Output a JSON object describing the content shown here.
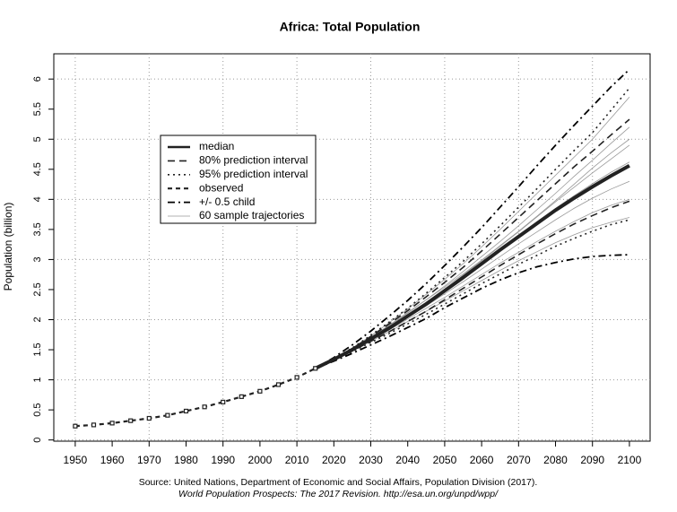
{
  "chart_data": {
    "type": "line",
    "title": "Africa: Total Population",
    "ylabel": "Population (billion)",
    "source": "Source: United Nations, Department of Economic and Social Affairs, Population Division (2017).",
    "source2": "World Population Prospects: The 2017 Revision. http://esa.un.org/unpd/wpp/",
    "xlim": [
      1944.2,
      2105.6
    ],
    "ylim": [
      -0.02,
      6.42
    ],
    "xticks": [
      1950,
      1960,
      1970,
      1980,
      1990,
      2000,
      2010,
      2020,
      2030,
      2040,
      2050,
      2060,
      2070,
      2080,
      2090,
      2100
    ],
    "yticks": [
      0,
      0.5,
      1,
      1.5,
      2,
      2.5,
      3,
      3.5,
      4,
      4.5,
      5,
      5.5,
      6
    ],
    "xgrid": [
      1950,
      1970,
      1990,
      2010,
      2030,
      2050,
      2070,
      2090
    ],
    "ygrid": [
      0,
      1,
      2,
      3,
      4,
      5,
      6
    ],
    "grid": true,
    "x": [
      2015,
      2020,
      2025,
      2030,
      2035,
      2040,
      2045,
      2050,
      2055,
      2060,
      2065,
      2070,
      2075,
      2080,
      2085,
      2090,
      2095,
      2100
    ],
    "series": [
      {
        "name": "median",
        "color": "#222222",
        "dash": "",
        "width": 4,
        "lines": [
          [
            1.19,
            1.34,
            1.5,
            1.68,
            1.86,
            2.06,
            2.26,
            2.48,
            2.7,
            2.93,
            3.16,
            3.38,
            3.6,
            3.82,
            4.02,
            4.21,
            4.39,
            4.56
          ]
        ]
      },
      {
        "name": "80% prediction interval",
        "color": "#222222",
        "dash": "8 5",
        "width": 1.6,
        "lines": [
          [
            1.19,
            1.34,
            1.52,
            1.72,
            1.93,
            2.15,
            2.38,
            2.62,
            2.87,
            3.14,
            3.42,
            3.7,
            3.98,
            4.26,
            4.54,
            4.8,
            5.07,
            5.33
          ],
          [
            1.19,
            1.33,
            1.48,
            1.64,
            1.8,
            1.97,
            2.14,
            2.33,
            2.52,
            2.71,
            2.9,
            3.08,
            3.26,
            3.43,
            3.59,
            3.73,
            3.86,
            3.97
          ]
        ]
      },
      {
        "name": "95% prediction interval",
        "color": "#222222",
        "dash": "2 4",
        "width": 1.6,
        "lines": [
          [
            1.19,
            1.35,
            1.53,
            1.74,
            1.96,
            2.19,
            2.44,
            2.7,
            2.97,
            3.26,
            3.56,
            3.87,
            4.18,
            4.5,
            4.81,
            5.11,
            5.48,
            5.85
          ],
          [
            1.19,
            1.33,
            1.47,
            1.62,
            1.77,
            1.93,
            2.09,
            2.26,
            2.43,
            2.6,
            2.76,
            2.92,
            3.07,
            3.22,
            3.35,
            3.47,
            3.58,
            3.66
          ]
        ]
      },
      {
        "name": "observed",
        "color": "#222222",
        "dash": "5 4",
        "width": 2.2,
        "marker": true,
        "x": [
          1950,
          1955,
          1960,
          1965,
          1970,
          1975,
          1980,
          1985,
          1990,
          1995,
          2000,
          2005,
          2010,
          2015
        ],
        "lines": [
          [
            0.23,
            0.25,
            0.28,
            0.32,
            0.36,
            0.41,
            0.48,
            0.55,
            0.63,
            0.72,
            0.81,
            0.92,
            1.04,
            1.19
          ]
        ]
      },
      {
        "name": "+/- 0.5 child",
        "color": "#000000",
        "dash": "8 4 2 4",
        "width": 1.8,
        "lines": [
          [
            1.19,
            1.37,
            1.58,
            1.81,
            2.06,
            2.32,
            2.6,
            2.9,
            3.21,
            3.53,
            3.87,
            4.21,
            4.56,
            4.9,
            5.23,
            5.55,
            5.87,
            6.16
          ],
          [
            1.19,
            1.31,
            1.44,
            1.58,
            1.72,
            1.87,
            2.02,
            2.2,
            2.36,
            2.52,
            2.66,
            2.78,
            2.88,
            2.95,
            3.01,
            3.05,
            3.07,
            3.08
          ]
        ]
      },
      {
        "name": "60 sample trajectories",
        "color": "#999999",
        "dash": "",
        "width": 0.8,
        "lines": [
          [
            1.19,
            1.35,
            1.53,
            1.73,
            1.95,
            2.18,
            2.42,
            2.67,
            2.93,
            3.21,
            3.5,
            3.8,
            4.1,
            4.4,
            4.7,
            5.0,
            5.35,
            5.7
          ],
          [
            1.19,
            1.34,
            1.51,
            1.7,
            1.9,
            2.11,
            2.33,
            2.56,
            2.8,
            3.05,
            3.3,
            3.56,
            3.83,
            4.1,
            4.38,
            4.65,
            4.93,
            5.2
          ],
          [
            1.19,
            1.34,
            1.51,
            1.69,
            1.88,
            2.08,
            2.29,
            2.51,
            2.74,
            2.98,
            3.22,
            3.46,
            3.71,
            3.96,
            4.2,
            4.44,
            4.67,
            4.9
          ],
          [
            1.19,
            1.34,
            1.5,
            1.68,
            1.87,
            2.07,
            2.27,
            2.48,
            2.7,
            2.93,
            3.16,
            3.39,
            3.62,
            3.85,
            4.06,
            4.26,
            4.45,
            4.62
          ],
          [
            1.19,
            1.34,
            1.5,
            1.67,
            1.85,
            2.04,
            2.23,
            2.43,
            2.63,
            2.84,
            3.05,
            3.26,
            3.46,
            3.66,
            3.85,
            4.02,
            4.17,
            4.3
          ],
          [
            1.19,
            1.33,
            1.49,
            1.66,
            1.83,
            2.01,
            2.19,
            2.37,
            2.56,
            2.75,
            2.94,
            3.12,
            3.3,
            3.47,
            3.63,
            3.78,
            3.9,
            4.0
          ],
          [
            1.19,
            1.33,
            1.48,
            1.64,
            1.8,
            1.97,
            2.14,
            2.31,
            2.48,
            2.65,
            2.82,
            2.98,
            3.13,
            3.28,
            3.41,
            3.53,
            3.62,
            3.7
          ],
          [
            1.19,
            1.34,
            1.52,
            1.71,
            1.91,
            2.12,
            2.33,
            2.54,
            2.76,
            2.99,
            3.23,
            3.47,
            3.72,
            3.98,
            4.25,
            4.52,
            4.77,
            5.0
          ]
        ]
      }
    ]
  }
}
